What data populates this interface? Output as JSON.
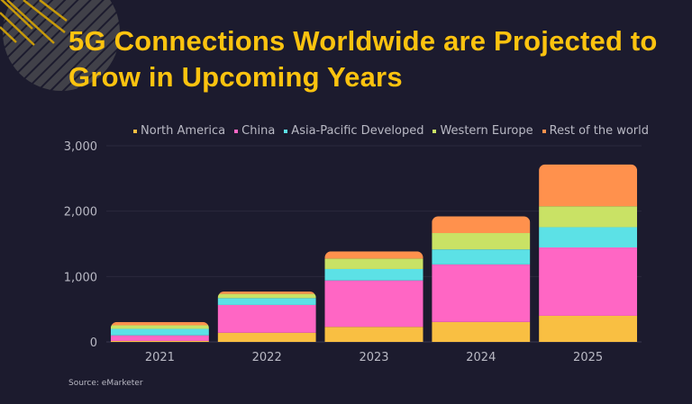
{
  "title": "5G Connections Worldwide are Projected to Grow in Upcoming Years",
  "source": "Source: eMarketer",
  "colors": {
    "background": "#1c1b2e",
    "title": "#fcc30f"
  },
  "chart_data": {
    "type": "bar",
    "stacked": true,
    "title": "5G Connections Worldwide are Projected to Grow in Upcoming Years",
    "categories": [
      "2021",
      "2022",
      "2023",
      "2024",
      "2025"
    ],
    "series": [
      {
        "name": "North America",
        "color": "#f9bf42",
        "values": [
          15,
          140,
          230,
          305,
          400
        ]
      },
      {
        "name": "China",
        "color": "#ff66c4",
        "values": [
          85,
          425,
          710,
          880,
          1045
        ]
      },
      {
        "name": "Asia-Pacific Developed",
        "color": "#5ce1e6",
        "values": [
          100,
          105,
          175,
          230,
          310
        ]
      },
      {
        "name": "Western Europe",
        "color": "#c9e265",
        "values": [
          55,
          65,
          160,
          250,
          320
        ]
      },
      {
        "name": "Rest of the world",
        "color": "#ff914d",
        "values": [
          50,
          35,
          110,
          255,
          640
        ]
      }
    ],
    "yticks": [
      "0",
      "1,000",
      "2,000",
      "3,000"
    ],
    "ylim": [
      0,
      3000
    ],
    "xlabel": "",
    "ylabel": "",
    "grid": true,
    "legend": "top"
  }
}
